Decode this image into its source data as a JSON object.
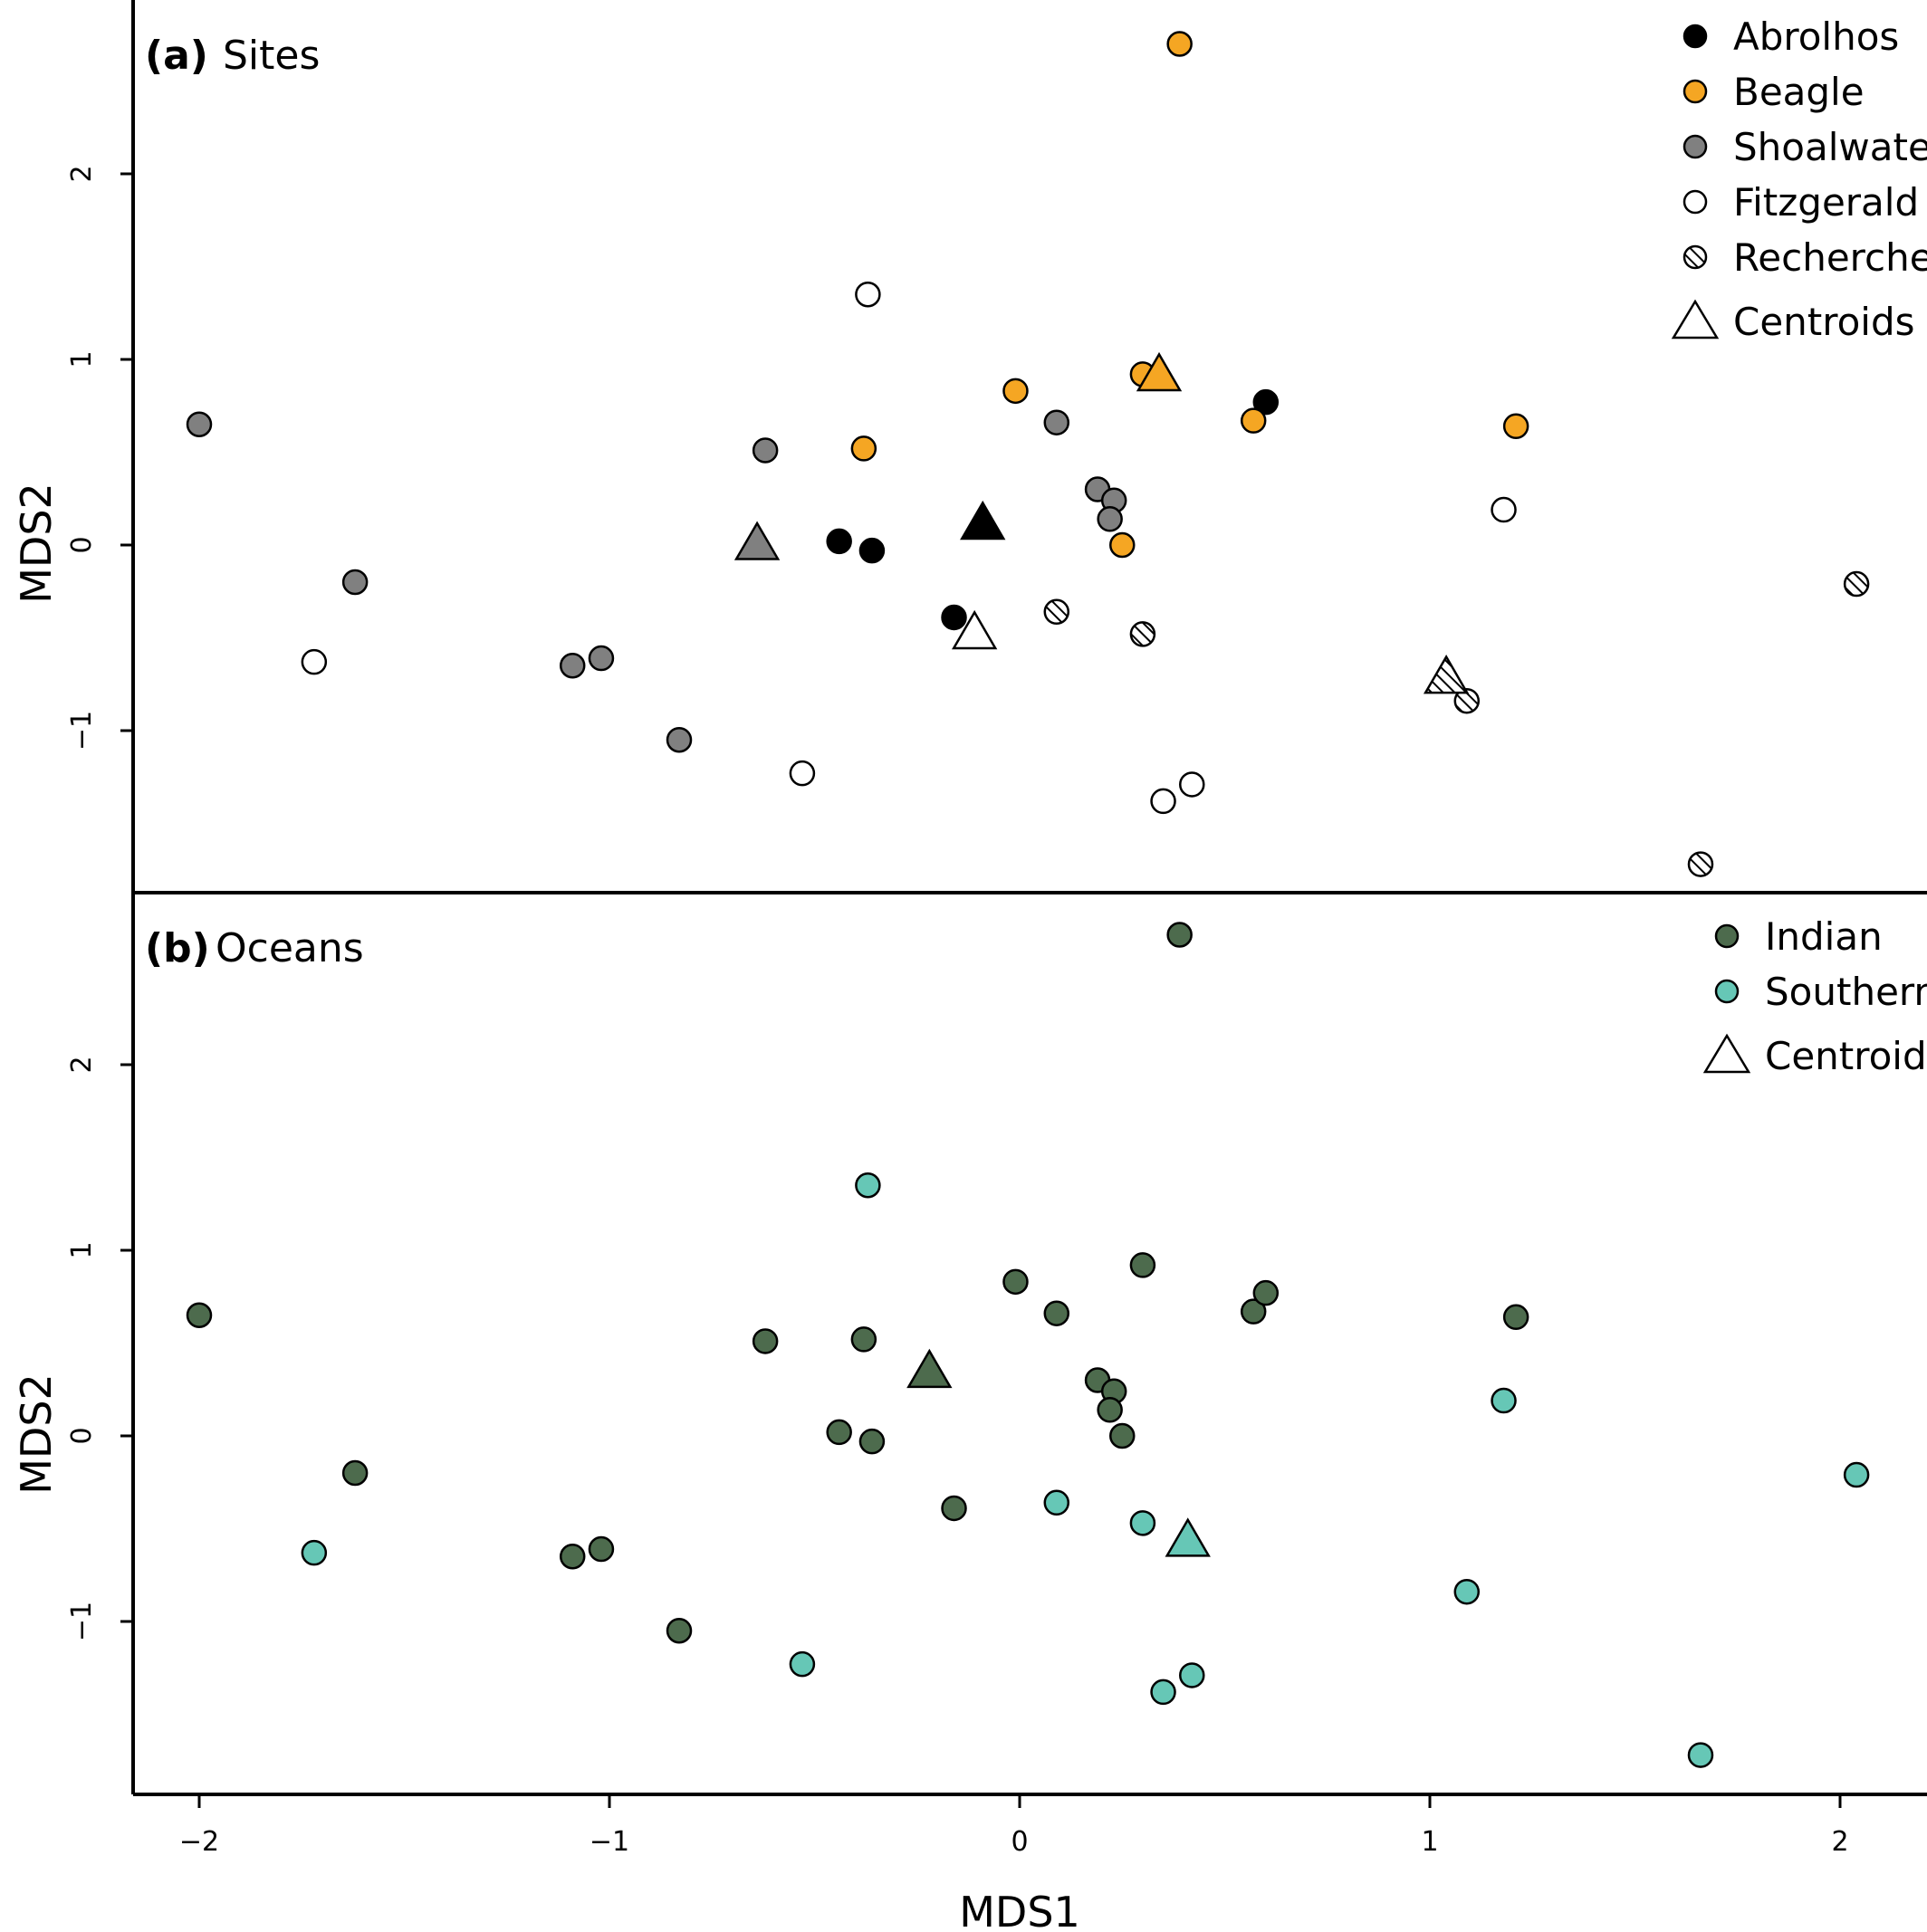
{
  "colors": {
    "Abrolhos": "#000000",
    "Beagle": "#f5a623",
    "Shoalwater": "#808080",
    "Fitzgerald": "#ffffff",
    "Recherche": "#ffffff",
    "Indian": "#4d6b4d",
    "Southern": "#66c7b6"
  },
  "chart_data": [
    {
      "type": "scatter",
      "panel_letter": "(a)",
      "title": "Sites",
      "ylabel": "MDS2",
      "xlabel": "",
      "xlim": [
        -2.15,
        2.2
      ],
      "ylim": [
        -1.85,
        2.9
      ],
      "xticks": [
        -2,
        -1,
        0,
        1,
        2
      ],
      "xtick_labels": [
        "−2",
        "−1",
        "0",
        "1",
        "2"
      ],
      "yticks": [
        -1,
        0,
        1,
        2
      ],
      "ytick_labels": [
        "−1",
        "0",
        "1",
        "2"
      ],
      "legend_position": "top-right",
      "legend": [
        "Abrolhos",
        "Beagle",
        "Shoalwater",
        "Fitzgerald",
        "Recherche",
        "Centroids"
      ],
      "series": [
        {
          "name": "Abrolhos",
          "fill": "solid",
          "points": [
            [
              -0.44,
              0.02
            ],
            [
              -0.36,
              -0.03
            ],
            [
              -0.16,
              -0.39
            ],
            [
              0.6,
              0.77
            ]
          ]
        },
        {
          "name": "Beagle",
          "fill": "solid",
          "points": [
            [
              0.39,
              2.7
            ],
            [
              -0.01,
              0.83
            ],
            [
              -0.38,
              0.52
            ],
            [
              0.3,
              0.92
            ],
            [
              0.57,
              0.67
            ],
            [
              1.21,
              0.64
            ],
            [
              0.25,
              0.0
            ]
          ]
        },
        {
          "name": "Shoalwater",
          "fill": "solid",
          "points": [
            [
              -2.0,
              0.65
            ],
            [
              -0.62,
              0.51
            ],
            [
              0.09,
              0.66
            ],
            [
              0.19,
              0.3
            ],
            [
              0.23,
              0.24
            ],
            [
              0.22,
              0.14
            ],
            [
              -1.62,
              -0.2
            ],
            [
              -1.09,
              -0.65
            ],
            [
              -1.02,
              -0.61
            ],
            [
              -0.83,
              -1.05
            ]
          ]
        },
        {
          "name": "Fitzgerald",
          "fill": "open",
          "points": [
            [
              -0.37,
              1.35
            ],
            [
              1.18,
              0.19
            ],
            [
              -1.72,
              -0.63
            ],
            [
              -0.53,
              -1.23
            ],
            [
              0.35,
              -1.38
            ],
            [
              0.42,
              -1.29
            ]
          ]
        },
        {
          "name": "Recherche",
          "fill": "hatched",
          "points": [
            [
              0.09,
              -0.36
            ],
            [
              0.3,
              -0.48
            ],
            [
              2.04,
              -0.21
            ],
            [
              1.09,
              -0.84
            ],
            [
              1.66,
              -1.72
            ]
          ]
        }
      ],
      "centroids": [
        {
          "name": "Abrolhos",
          "fill": "solid",
          "x": -0.09,
          "y": 0.12
        },
        {
          "name": "Beagle",
          "fill": "solid",
          "x": 0.34,
          "y": 0.92
        },
        {
          "name": "Shoalwater",
          "fill": "solid",
          "x": -0.64,
          "y": 0.01
        },
        {
          "name": "Fitzgerald",
          "fill": "open",
          "x": -0.11,
          "y": -0.47
        },
        {
          "name": "Recherche",
          "fill": "hatched",
          "x": 1.04,
          "y": -0.71
        }
      ]
    },
    {
      "type": "scatter",
      "panel_letter": "(b)",
      "title": "Oceans",
      "ylabel": "MDS2",
      "xlabel": "MDS1",
      "xlim": [
        -2.15,
        2.2
      ],
      "ylim": [
        -1.85,
        2.9
      ],
      "xticks": [
        -2,
        -1,
        0,
        1,
        2
      ],
      "xtick_labels": [
        "−2",
        "−1",
        "0",
        "1",
        "2"
      ],
      "yticks": [
        -1,
        0,
        1,
        2
      ],
      "ytick_labels": [
        "−1",
        "0",
        "1",
        "2"
      ],
      "legend_position": "top-right",
      "legend": [
        "Indian",
        "Southern",
        "Centroids"
      ],
      "series": [
        {
          "name": "Indian",
          "fill": "solid",
          "points": [
            [
              0.39,
              2.7
            ],
            [
              -2.0,
              0.65
            ],
            [
              -0.62,
              0.51
            ],
            [
              -0.38,
              0.52
            ],
            [
              -0.01,
              0.83
            ],
            [
              0.09,
              0.66
            ],
            [
              0.3,
              0.92
            ],
            [
              0.57,
              0.67
            ],
            [
              0.6,
              0.77
            ],
            [
              1.21,
              0.64
            ],
            [
              0.19,
              0.3
            ],
            [
              0.23,
              0.24
            ],
            [
              0.22,
              0.14
            ],
            [
              0.25,
              0.0
            ],
            [
              -0.44,
              0.02
            ],
            [
              -0.36,
              -0.03
            ],
            [
              -1.62,
              -0.2
            ],
            [
              -1.09,
              -0.65
            ],
            [
              -1.02,
              -0.61
            ],
            [
              -0.16,
              -0.39
            ],
            [
              -0.83,
              -1.05
            ]
          ]
        },
        {
          "name": "Southern",
          "fill": "solid",
          "points": [
            [
              -0.37,
              1.35
            ],
            [
              1.18,
              0.19
            ],
            [
              2.04,
              -0.21
            ],
            [
              -1.72,
              -0.63
            ],
            [
              0.09,
              -0.36
            ],
            [
              0.3,
              -0.47
            ],
            [
              1.09,
              -0.84
            ],
            [
              -0.53,
              -1.23
            ],
            [
              0.35,
              -1.38
            ],
            [
              0.42,
              -1.29
            ],
            [
              1.66,
              -1.72
            ]
          ]
        }
      ],
      "centroids": [
        {
          "name": "Indian",
          "fill": "solid",
          "x": -0.22,
          "y": 0.35
        },
        {
          "name": "Southern",
          "fill": "solid",
          "x": 0.41,
          "y": -0.56
        }
      ]
    }
  ]
}
